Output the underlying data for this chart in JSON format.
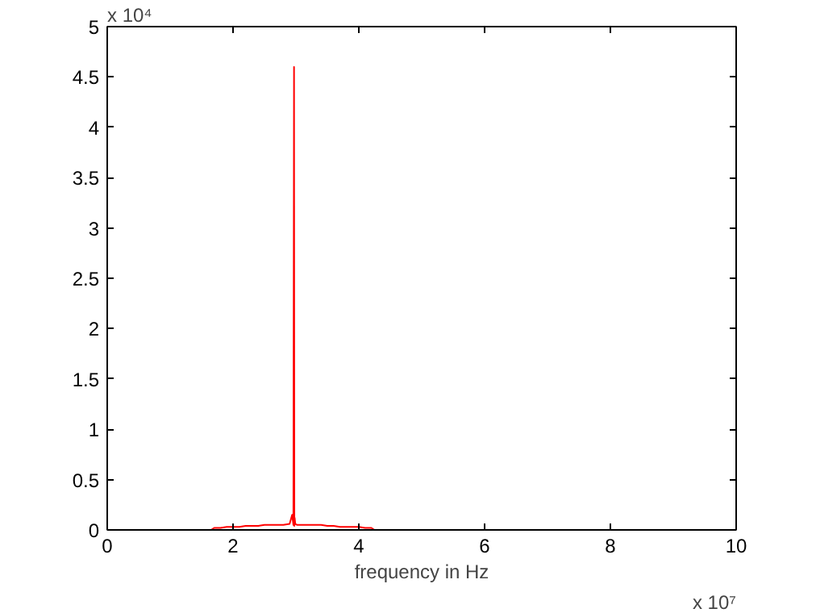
{
  "chart_data": {
    "type": "line",
    "xlabel": "frequency in Hz",
    "x": [
      0,
      1,
      1.65,
      1.7,
      1.8,
      1.9,
      2,
      2.1,
      2.2,
      2.3,
      2.4,
      2.5,
      2.6,
      2.7,
      2.8,
      2.9,
      2.94,
      2.96,
      2.97,
      2.975,
      2.98,
      2.99,
      3.02,
      3.1,
      3.2,
      3.3,
      3.4,
      3.5,
      3.6,
      3.7,
      3.8,
      3.9,
      4,
      4.1,
      4.2,
      4.25,
      5,
      10
    ],
    "series": [
      {
        "color": "#ff0000",
        "values": [
          0,
          0,
          0,
          0.02,
          0.02,
          0.03,
          0.03,
          0.03,
          0.04,
          0.04,
          0.04,
          0.05,
          0.05,
          0.05,
          0.05,
          0.06,
          0.15,
          0.05,
          4.6,
          0.04,
          0.12,
          0.06,
          0.05,
          0.05,
          0.05,
          0.05,
          0.05,
          0.04,
          0.04,
          0.03,
          0.03,
          0.03,
          0.03,
          0.02,
          0.02,
          0,
          0,
          0
        ]
      }
    ],
    "xlim": [
      0,
      10
    ],
    "ylim": [
      0,
      5
    ],
    "xticks": [
      0,
      2,
      4,
      6,
      8,
      10
    ],
    "yticks": [
      0,
      0.5,
      1,
      1.5,
      2,
      2.5,
      3,
      3.5,
      4,
      4.5,
      5
    ],
    "annotations": [
      "x 10⁴",
      "x 10⁷"
    ],
    "grid": false,
    "marker": "none",
    "line_style": "solid"
  }
}
